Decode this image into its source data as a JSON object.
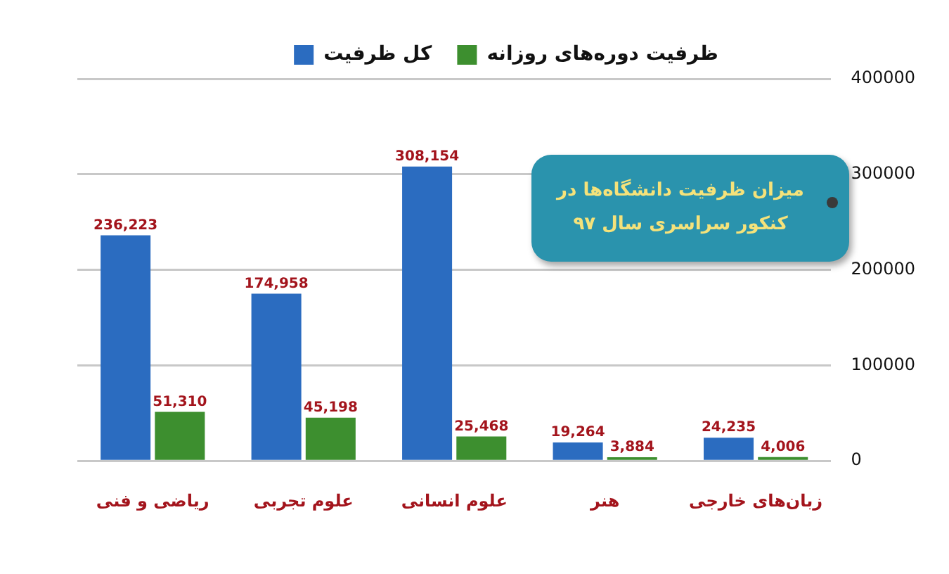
{
  "chart_data": {
    "type": "bar",
    "title": "میزان ظرفیت دانشگاه‌ها در کنکور سراسری سال ۹۷",
    "categories": [
      "ریاضی و فنی",
      "علوم تجربی",
      "علوم انسانی",
      "هنر",
      "زبان‌های خارجی"
    ],
    "series": [
      {
        "name": "کل ظرفیت",
        "color": "#2b6cc0",
        "values": [
          236223,
          174958,
          308154,
          19264,
          24235
        ],
        "value_labels": [
          "236,223",
          "174,958",
          "308,154",
          "19,264",
          "24,235"
        ]
      },
      {
        "name": "ظرفیت دوره‌های روزانه",
        "color": "#3d8f2f",
        "values": [
          51310,
          45198,
          25468,
          3884,
          4006
        ],
        "value_labels": [
          "51,310",
          "45,198",
          "25,468",
          "3,884",
          "4,006"
        ]
      }
    ],
    "ylim": [
      0,
      400000
    ],
    "yticks": [
      0,
      100000,
      200000,
      300000,
      400000
    ],
    "grid": "y",
    "legend": "top"
  }
}
